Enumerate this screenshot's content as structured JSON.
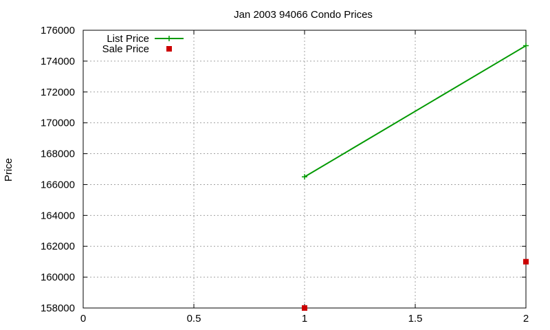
{
  "chart_data": {
    "type": "line",
    "title": "Jan 2003 94066 Condo Prices",
    "xlabel": "",
    "ylabel": "Price",
    "xlim": [
      0,
      2
    ],
    "ylim": [
      158000,
      176000
    ],
    "x_ticks": [
      {
        "value": 0,
        "label": "0"
      },
      {
        "value": 0.5,
        "label": "0.5"
      },
      {
        "value": 1,
        "label": "1"
      },
      {
        "value": 1.5,
        "label": "1.5"
      },
      {
        "value": 2,
        "label": "2"
      }
    ],
    "y_ticks": [
      {
        "value": 158000,
        "label": "158000"
      },
      {
        "value": 160000,
        "label": "160000"
      },
      {
        "value": 162000,
        "label": "162000"
      },
      {
        "value": 164000,
        "label": "164000"
      },
      {
        "value": 166000,
        "label": "166000"
      },
      {
        "value": 168000,
        "label": "168000"
      },
      {
        "value": 170000,
        "label": "170000"
      },
      {
        "value": 172000,
        "label": "172000"
      },
      {
        "value": 174000,
        "label": "174000"
      },
      {
        "value": 176000,
        "label": "176000"
      }
    ],
    "grid": true,
    "legend_position": "top-left",
    "series": [
      {
        "name": "List Price",
        "style": "linespoints",
        "marker": "plus",
        "color": "#009900",
        "points": [
          {
            "x": 1,
            "y": 166500
          },
          {
            "x": 2,
            "y": 175000
          }
        ]
      },
      {
        "name": "Sale Price",
        "style": "points",
        "marker": "square",
        "color": "#cc0000",
        "points": [
          {
            "x": 1,
            "y": 158000
          },
          {
            "x": 2,
            "y": 161000
          }
        ]
      }
    ]
  }
}
